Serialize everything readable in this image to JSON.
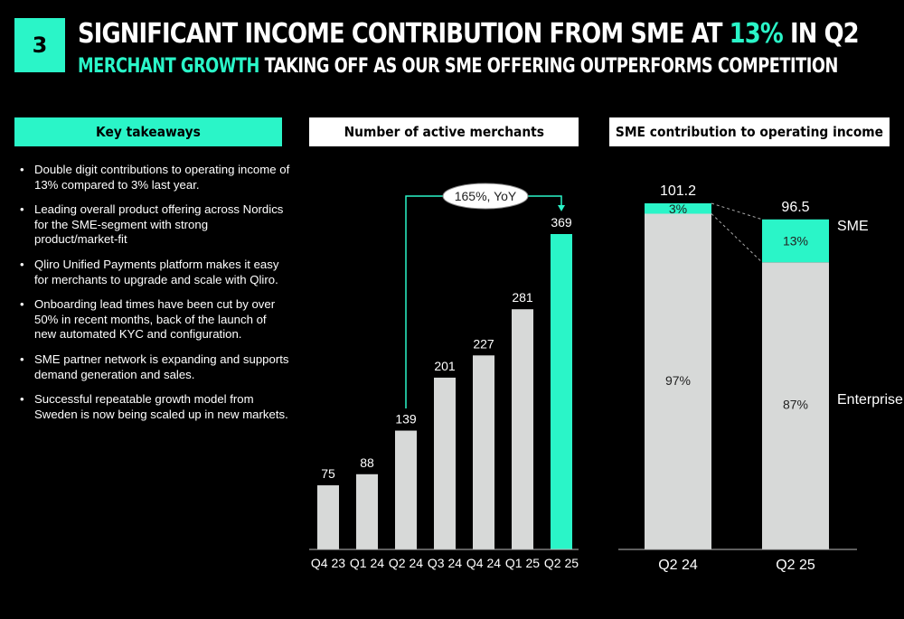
{
  "header": {
    "badge": "3",
    "title_pre": "SIGNIFICANT INCOME CONTRIBUTION FROM SME AT ",
    "title_highlight": "13%",
    "title_post": " IN Q2",
    "subtitle_highlight": "MERCHANT GROWTH",
    "subtitle_post": " TAKING OFF AS OUR SME OFFERING OUTPERFORMS COMPETITION"
  },
  "colors": {
    "accent": "#2af5c8",
    "bar_gray": "#d7d9d8",
    "background": "#000000"
  },
  "takeaways": {
    "title": "Key takeaways",
    "items": [
      "Double digit contributions to operating income of 13% compared to 3% last year.",
      "Leading overall product offering across Nordics for the SME-segment with strong product/market-fit",
      "Qliro Unified Payments platform makes it easy for merchants to upgrade and scale with Qliro.",
      "Onboarding lead times have been cut by over 50% in recent months, back of the launch of new automated KYC and configuration.",
      "SME partner network is expanding and supports demand generation and sales.",
      "Successful repeatable growth model from Sweden is now being scaled up in new markets."
    ]
  },
  "chart_data": [
    {
      "type": "bar",
      "title": "Number of active merchants",
      "categories": [
        "Q4 23",
        "Q1 24",
        "Q2 24",
        "Q3 24",
        "Q4 24",
        "Q1 25",
        "Q2 25"
      ],
      "values": [
        75,
        88,
        139,
        201,
        227,
        281,
        369
      ],
      "highlight_index": 6,
      "annotation": {
        "text": "165%, YoY",
        "from_index": 2,
        "to_index": 6
      },
      "ylim": [
        0,
        369
      ]
    },
    {
      "type": "bar",
      "title": "SME contribution to operating income",
      "categories": [
        "Q2 24",
        "Q2 25"
      ],
      "totals": [
        "101.2",
        "96.5"
      ],
      "total_values": [
        101.2,
        96.5
      ],
      "series": [
        {
          "name": "Enterprise",
          "values": [
            97,
            87
          ],
          "labels": [
            "97%",
            "87%"
          ]
        },
        {
          "name": "SME",
          "values": [
            3,
            13
          ],
          "labels": [
            "3%",
            "13%"
          ]
        }
      ]
    }
  ]
}
